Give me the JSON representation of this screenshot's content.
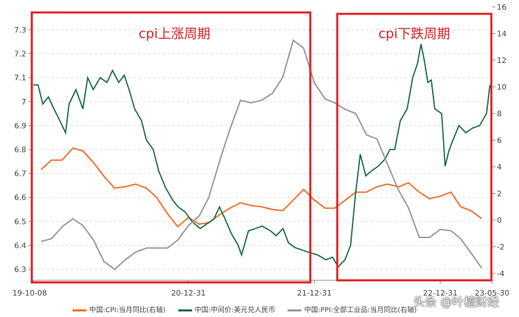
{
  "chart_data": {
    "type": "line",
    "x_ticks": [
      "19-10-08",
      "20-12-31",
      "21-12-31",
      "22-12-31",
      "23-05-30"
    ],
    "x_range": [
      "2019-10-08",
      "2023-05-30"
    ],
    "left_axis": {
      "range": [
        6.25,
        7.35
      ],
      "ticks": [
        "7.3",
        "7.2",
        "7.1",
        "7",
        "6.9",
        "6.8",
        "6.7",
        "6.6",
        "6.5",
        "6.4",
        "6.3"
      ]
    },
    "right_axis": {
      "range": [
        -5,
        16
      ],
      "ticks": [
        "16",
        "14",
        "12",
        "10",
        "8",
        "6",
        "4",
        "2",
        "0",
        "-2",
        "-4"
      ]
    },
    "grid": "horizontal dashed",
    "legend_position": "bottom",
    "annotations": [
      {
        "text": "cpi上涨周期",
        "from": "2019-10-08",
        "to": "2021-12-20",
        "color": "#e02020"
      },
      {
        "text": "cpi下跌周期",
        "from": "2022-01-30",
        "to": "2023-05-28",
        "color": "#e02020"
      }
    ],
    "series": [
      {
        "name": "中国:CPI:当月同比(右轴)",
        "axis": "right",
        "color": "#f07030",
        "points": [
          [
            "2019-10",
            3.8
          ],
          [
            "2019-11",
            4.5
          ],
          [
            "2019-12",
            4.5
          ],
          [
            "2020-01",
            5.4
          ],
          [
            "2020-02",
            5.2
          ],
          [
            "2020-03",
            4.3
          ],
          [
            "2020-04",
            3.3
          ],
          [
            "2020-05",
            2.4
          ],
          [
            "2020-06",
            2.5
          ],
          [
            "2020-07",
            2.7
          ],
          [
            "2020-08",
            2.4
          ],
          [
            "2020-09",
            1.7
          ],
          [
            "2020-10",
            0.5
          ],
          [
            "2020-11",
            -0.5
          ],
          [
            "2020-12",
            0.2
          ],
          [
            "2021-01",
            -0.3
          ],
          [
            "2021-02",
            -0.2
          ],
          [
            "2021-03",
            0.4
          ],
          [
            "2021-04",
            0.9
          ],
          [
            "2021-05",
            1.3
          ],
          [
            "2021-06",
            1.1
          ],
          [
            "2021-07",
            1.0
          ],
          [
            "2021-08",
            0.8
          ],
          [
            "2021-09",
            0.7
          ],
          [
            "2021-10",
            1.5
          ],
          [
            "2021-11",
            2.3
          ],
          [
            "2021-12",
            1.5
          ],
          [
            "2022-01",
            0.9
          ],
          [
            "2022-02",
            0.9
          ],
          [
            "2022-03",
            1.5
          ],
          [
            "2022-04",
            2.1
          ],
          [
            "2022-05",
            2.1
          ],
          [
            "2022-06",
            2.5
          ],
          [
            "2022-07",
            2.7
          ],
          [
            "2022-08",
            2.5
          ],
          [
            "2022-09",
            2.8
          ],
          [
            "2022-10",
            2.1
          ],
          [
            "2022-11",
            1.6
          ],
          [
            "2022-12",
            1.8
          ],
          [
            "2023-01",
            2.1
          ],
          [
            "2023-02",
            1.0
          ],
          [
            "2023-03",
            0.7
          ],
          [
            "2023-04",
            0.1
          ]
        ]
      },
      {
        "name": "中国:中间价:美元兑人民币",
        "axis": "left",
        "color": "#1a6b48",
        "points": [
          [
            "2019-10-08",
            7.07
          ],
          [
            "2019-10-22",
            7.07
          ],
          [
            "2019-11-05",
            6.99
          ],
          [
            "2019-11-21",
            7.02
          ],
          [
            "2019-12-07",
            6.97
          ],
          [
            "2019-12-21",
            6.93
          ],
          [
            "2020-01-10",
            6.87
          ],
          [
            "2020-01-20",
            6.99
          ],
          [
            "2020-02-09",
            7.05
          ],
          [
            "2020-02-29",
            6.97
          ],
          [
            "2020-03-14",
            7.1
          ],
          [
            "2020-03-30",
            7.05
          ],
          [
            "2020-04-19",
            7.1
          ],
          [
            "2020-05-09",
            7.08
          ],
          [
            "2020-05-25",
            7.13
          ],
          [
            "2020-06-12",
            7.08
          ],
          [
            "2020-06-28",
            7.11
          ],
          [
            "2020-07-12",
            7.05
          ],
          [
            "2020-07-28",
            6.97
          ],
          [
            "2020-08-17",
            6.92
          ],
          [
            "2020-08-31",
            6.84
          ],
          [
            "2020-09-20",
            6.8
          ],
          [
            "2020-10-06",
            6.71
          ],
          [
            "2020-10-26",
            6.64
          ],
          [
            "2020-11-15",
            6.59
          ],
          [
            "2020-12-01",
            6.56
          ],
          [
            "2020-12-21",
            6.54
          ],
          [
            "2021-01-10",
            6.5
          ],
          [
            "2021-02-03",
            6.47
          ],
          [
            "2021-02-23",
            6.49
          ],
          [
            "2021-03-15",
            6.51
          ],
          [
            "2021-03-31",
            6.56
          ],
          [
            "2021-04-16",
            6.51
          ],
          [
            "2021-05-04",
            6.45
          ],
          [
            "2021-05-24",
            6.4
          ],
          [
            "2021-06-03",
            6.36
          ],
          [
            "2021-06-23",
            6.46
          ],
          [
            "2021-07-13",
            6.47
          ],
          [
            "2021-08-02",
            6.48
          ],
          [
            "2021-08-26",
            6.46
          ],
          [
            "2021-09-11",
            6.44
          ],
          [
            "2021-10-01",
            6.47
          ],
          [
            "2021-10-17",
            6.41
          ],
          [
            "2021-11-06",
            6.39
          ],
          [
            "2021-11-26",
            6.38
          ],
          [
            "2021-12-16",
            6.37
          ],
          [
            "2022-01-09",
            6.36
          ],
          [
            "2022-02-02",
            6.34
          ],
          [
            "2022-02-22",
            6.35
          ],
          [
            "2022-03-10",
            6.31
          ],
          [
            "2022-03-30",
            6.34
          ],
          [
            "2022-04-15",
            6.4
          ],
          [
            "2022-04-29",
            6.61
          ],
          [
            "2022-05-13",
            6.78
          ],
          [
            "2022-05-29",
            6.69
          ],
          [
            "2022-06-14",
            6.71
          ],
          [
            "2022-07-04",
            6.73
          ],
          [
            "2022-07-24",
            6.76
          ],
          [
            "2022-08-07",
            6.8
          ],
          [
            "2022-08-21",
            6.8
          ],
          [
            "2022-09-06",
            6.92
          ],
          [
            "2022-09-26",
            6.97
          ],
          [
            "2022-10-12",
            7.1
          ],
          [
            "2022-10-26",
            7.16
          ],
          [
            "2022-11-05",
            7.24
          ],
          [
            "2022-11-15",
            7.17
          ],
          [
            "2022-11-25",
            7.08
          ],
          [
            "2022-12-05",
            7.09
          ],
          [
            "2022-12-15",
            6.97
          ],
          [
            "2023-01-04",
            6.95
          ],
          [
            "2023-01-14",
            6.73
          ],
          [
            "2023-01-24",
            6.79
          ],
          [
            "2023-02-03",
            6.83
          ],
          [
            "2023-02-23",
            6.9
          ],
          [
            "2023-03-15",
            6.87
          ],
          [
            "2023-04-04",
            6.89
          ],
          [
            "2023-04-24",
            6.9
          ],
          [
            "2023-05-14",
            6.95
          ],
          [
            "2023-05-24",
            7.07
          ]
        ]
      },
      {
        "name": "中国:PPI:全部工业品:当月同比(右轴)",
        "axis": "right",
        "color": "#999999",
        "points": [
          [
            "2019-10",
            -1.6
          ],
          [
            "2019-11",
            -1.4
          ],
          [
            "2019-12",
            -0.5
          ],
          [
            "2020-01",
            0.1
          ],
          [
            "2020-02",
            -0.4
          ],
          [
            "2020-03",
            -1.5
          ],
          [
            "2020-04",
            -3.1
          ],
          [
            "2020-05",
            -3.7
          ],
          [
            "2020-06",
            -3.0
          ],
          [
            "2020-07",
            -2.4
          ],
          [
            "2020-08",
            -2.1
          ],
          [
            "2020-09",
            -2.1
          ],
          [
            "2020-10",
            -2.1
          ],
          [
            "2020-11",
            -1.5
          ],
          [
            "2020-12",
            -0.4
          ],
          [
            "2021-01",
            0.3
          ],
          [
            "2021-02",
            1.7
          ],
          [
            "2021-03",
            4.4
          ],
          [
            "2021-04",
            6.8
          ],
          [
            "2021-05",
            9.0
          ],
          [
            "2021-06",
            8.8
          ],
          [
            "2021-07",
            9.0
          ],
          [
            "2021-08",
            9.5
          ],
          [
            "2021-09",
            10.7
          ],
          [
            "2021-10",
            13.5
          ],
          [
            "2021-11",
            12.9
          ],
          [
            "2021-12",
            10.3
          ],
          [
            "2022-01",
            9.1
          ],
          [
            "2022-02",
            8.8
          ],
          [
            "2022-03",
            8.3
          ],
          [
            "2022-04",
            8.0
          ],
          [
            "2022-05",
            6.4
          ],
          [
            "2022-06",
            6.1
          ],
          [
            "2022-07",
            4.2
          ],
          [
            "2022-08",
            2.3
          ],
          [
            "2022-09",
            0.9
          ],
          [
            "2022-10",
            -1.3
          ],
          [
            "2022-11",
            -1.3
          ],
          [
            "2022-12",
            -0.7
          ],
          [
            "2023-01",
            -0.8
          ],
          [
            "2023-02",
            -1.4
          ],
          [
            "2023-03",
            -2.5
          ],
          [
            "2023-04",
            -3.6
          ]
        ]
      }
    ]
  },
  "watermark": "头条 @叶檀财经"
}
